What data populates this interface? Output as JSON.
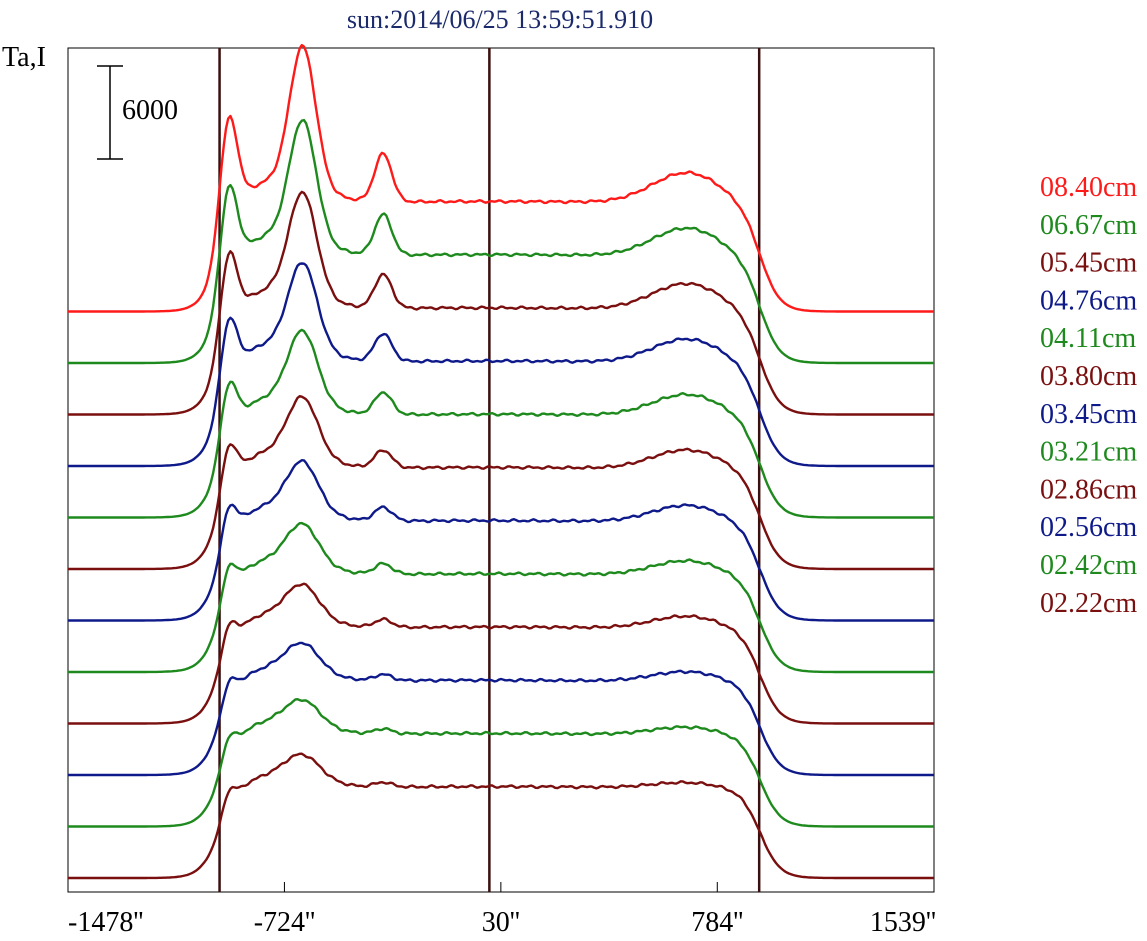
{
  "chart_data": {
    "type": "line",
    "title": "sun:2014/06/25 13:59:51.910",
    "ylabel": "Ta,I",
    "scale_bar_label": "6000",
    "scale_bar_value": 6000,
    "xlim": [
      -1478,
      1539
    ],
    "x_ticks": [
      -1478,
      -724,
      30,
      784,
      1539
    ],
    "x_tick_labels": [
      "-1478''",
      "-724''",
      "30''",
      "784''",
      "1539''"
    ],
    "vertical_markers": [
      -950,
      -10,
      930
    ],
    "series": [
      {
        "name": "08.40cm",
        "color": "#ff1a1a",
        "offset": 12
      },
      {
        "name": "06.67cm",
        "color": "#1e8a1e",
        "offset": 11
      },
      {
        "name": "05.45cm",
        "color": "#7a0f0f",
        "offset": 10
      },
      {
        "name": "04.76cm",
        "color": "#0f1a8a",
        "offset": 9
      },
      {
        "name": "04.11cm",
        "color": "#1e8a1e",
        "offset": 8
      },
      {
        "name": "03.80cm",
        "color": "#7a0f0f",
        "offset": 7
      },
      {
        "name": "03.45cm",
        "color": "#0f1a8a",
        "offset": 6
      },
      {
        "name": "03.21cm",
        "color": "#1e8a1e",
        "offset": 5
      },
      {
        "name": "02.86cm",
        "color": "#7a0f0f",
        "offset": 4
      },
      {
        "name": "02.56cm",
        "color": "#0f1a8a",
        "offset": 3
      },
      {
        "name": "02.42cm",
        "color": "#1e8a1e",
        "offset": 2
      },
      {
        "name": "02.22cm",
        "color": "#7a0f0f",
        "offset": 1
      }
    ],
    "grid": false
  }
}
